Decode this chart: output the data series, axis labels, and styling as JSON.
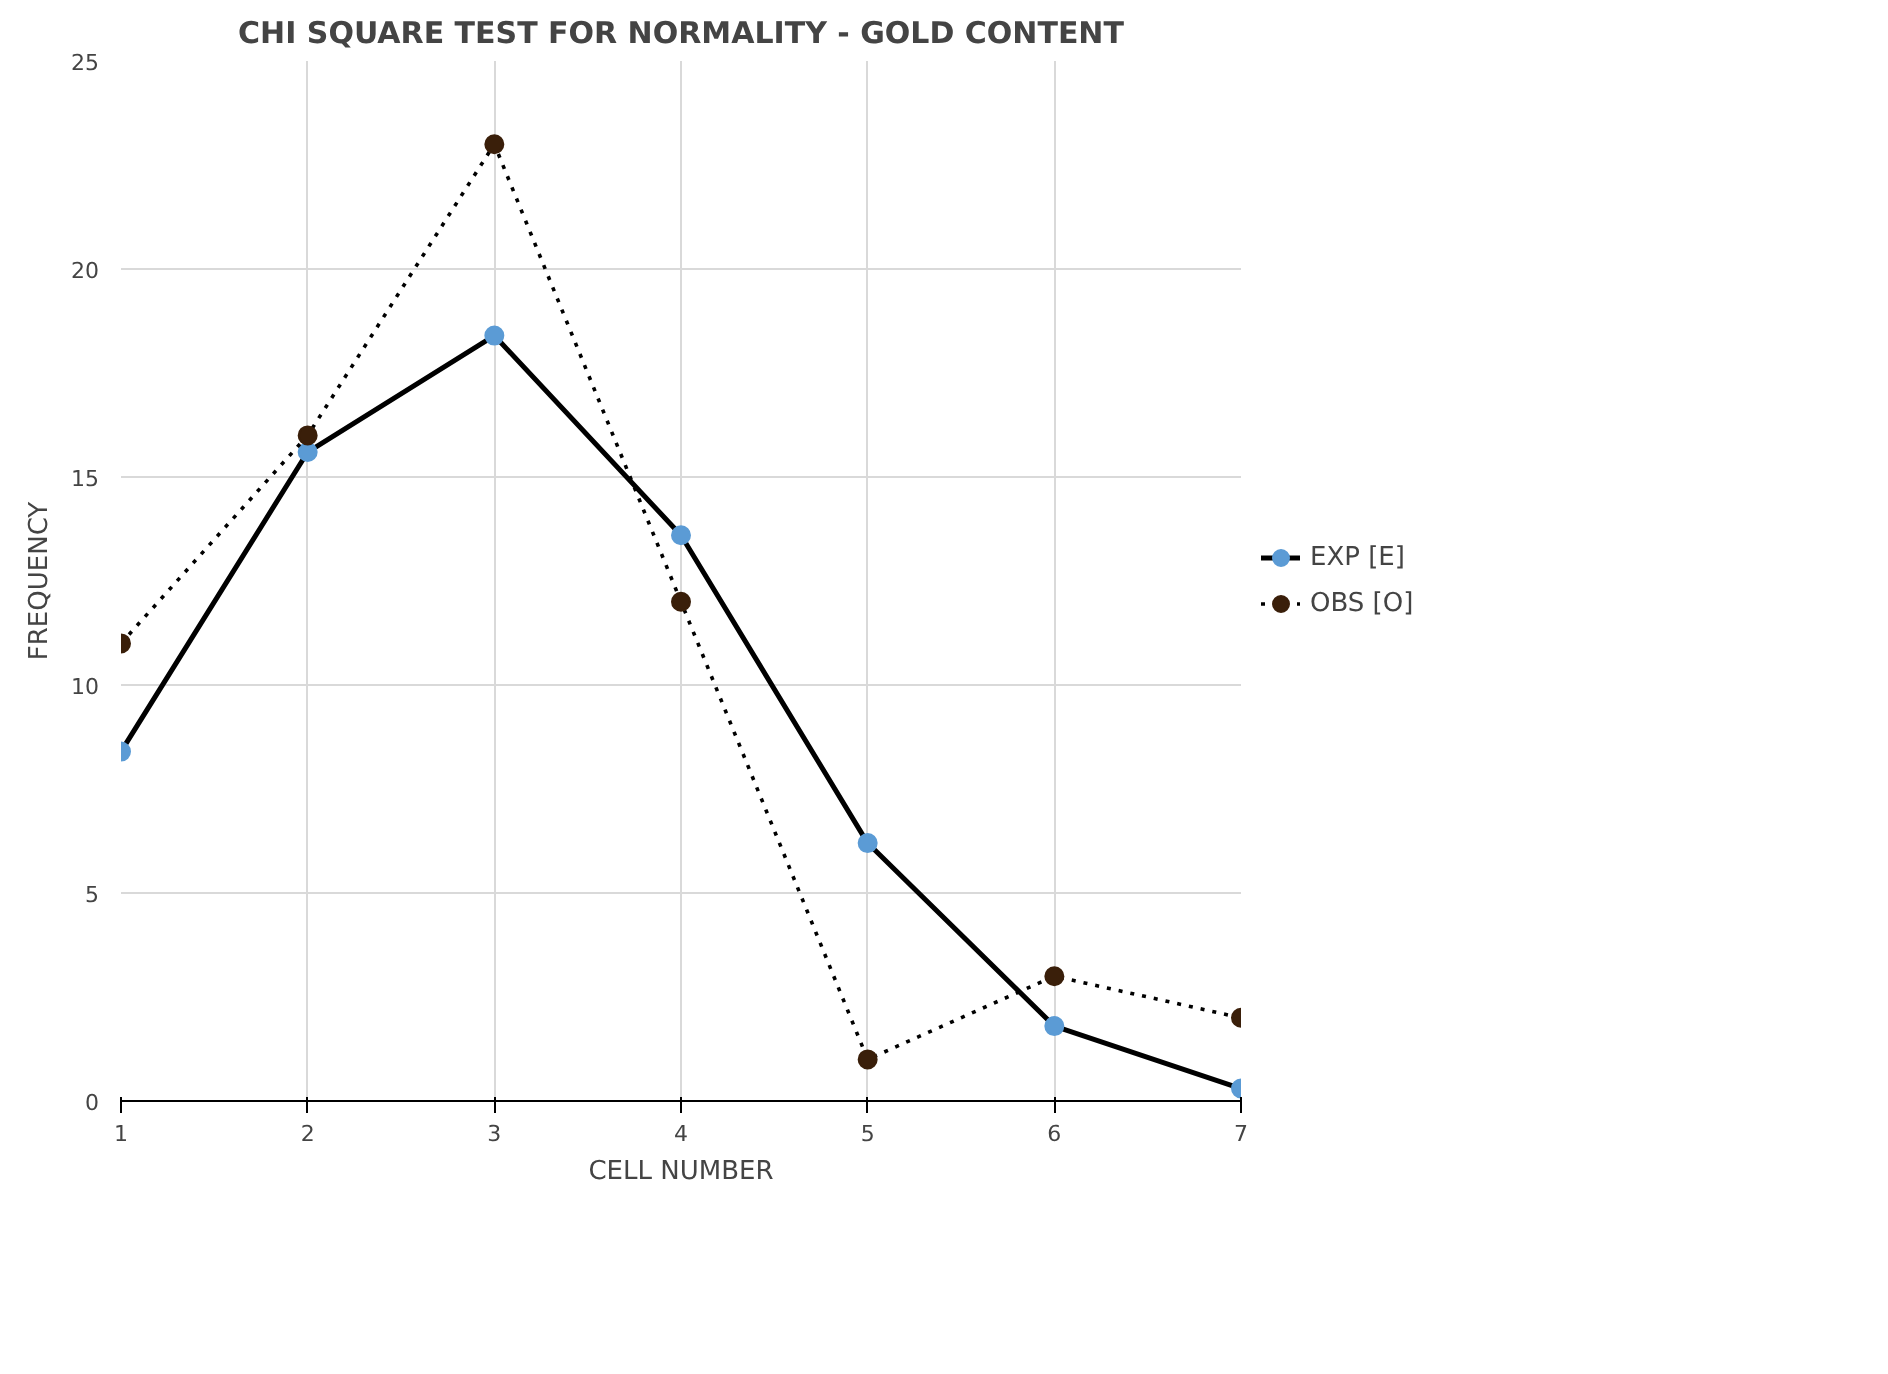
{
  "chart_data": {
    "type": "line",
    "title": "CHI SQUARE TEST FOR NORMALITY - GOLD CONTENT",
    "xlabel": "CELL NUMBER",
    "ylabel": "FREQUENCY",
    "x": [
      1,
      2,
      3,
      4,
      5,
      6,
      7
    ],
    "xlim": [
      1,
      7
    ],
    "xticks": [
      1,
      2,
      3,
      4,
      5,
      6,
      7
    ],
    "ylim": [
      0,
      25
    ],
    "yticks": [
      0,
      5,
      10,
      15,
      20,
      25
    ],
    "series": [
      {
        "name": "EXP [E]",
        "color": "#5b9bd5",
        "line_style": "solid",
        "values": [
          8.4,
          15.6,
          18.4,
          13.6,
          6.2,
          1.8,
          0.3
        ]
      },
      {
        "name": "OBS [O]",
        "color": "#3a1f0a",
        "line_style": "dotted",
        "values": [
          11,
          16,
          23,
          12,
          1,
          3,
          2
        ]
      }
    ],
    "grid": true,
    "legend": "right",
    "marker": "circle"
  }
}
